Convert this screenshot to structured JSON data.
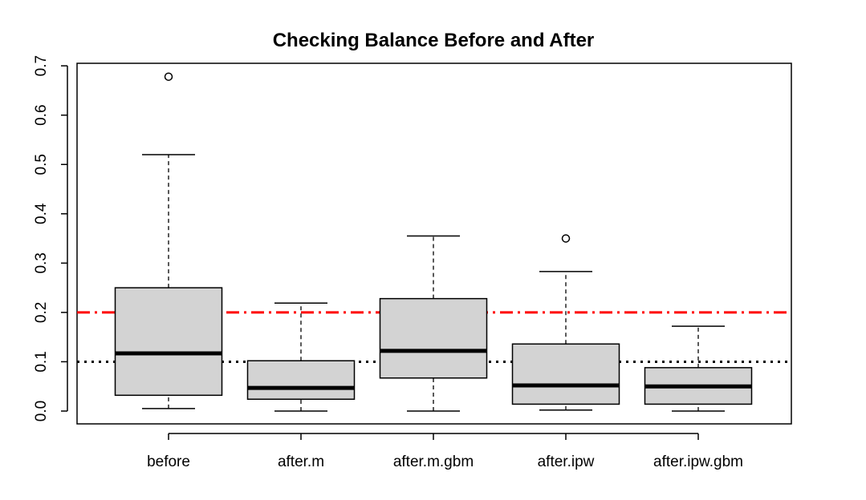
{
  "chart_data": {
    "type": "boxplot",
    "title": "Checking Balance Before and After",
    "xlabel": "",
    "ylabel": "",
    "ylim": [
      -0.03,
      0.74
    ],
    "yticks": [
      0.0,
      0.1,
      0.2,
      0.3,
      0.4,
      0.5,
      0.6,
      0.7
    ],
    "ytick_labels": [
      "0.0",
      "0.1",
      "0.2",
      "0.3",
      "0.4",
      "0.5",
      "0.6",
      "0.7"
    ],
    "categories": [
      "before",
      "after.m",
      "after.m.gbm",
      "after.ipw",
      "after.ipw.gbm"
    ],
    "boxes": [
      {
        "whisker_low": 0.005,
        "q1": 0.032,
        "median": 0.117,
        "q3": 0.25,
        "whisker_high": 0.52,
        "outliers": [
          0.678
        ]
      },
      {
        "whisker_low": 0.0,
        "q1": 0.024,
        "median": 0.047,
        "q3": 0.102,
        "whisker_high": 0.219,
        "outliers": []
      },
      {
        "whisker_low": 0.0,
        "q1": 0.067,
        "median": 0.122,
        "q3": 0.228,
        "whisker_high": 0.355,
        "outliers": []
      },
      {
        "whisker_low": 0.002,
        "q1": 0.014,
        "median": 0.052,
        "q3": 0.136,
        "whisker_high": 0.283,
        "outliers": [
          0.35
        ]
      },
      {
        "whisker_low": 0.0,
        "q1": 0.014,
        "median": 0.05,
        "q3": 0.088,
        "whisker_high": 0.172,
        "outliers": []
      }
    ],
    "reference_lines": [
      {
        "y": 0.2,
        "color": "#ff0000",
        "style": "dash-dot"
      },
      {
        "y": 0.1,
        "color": "#000000",
        "style": "dotted"
      }
    ],
    "box_fill": "#d3d3d3",
    "grid": false
  }
}
